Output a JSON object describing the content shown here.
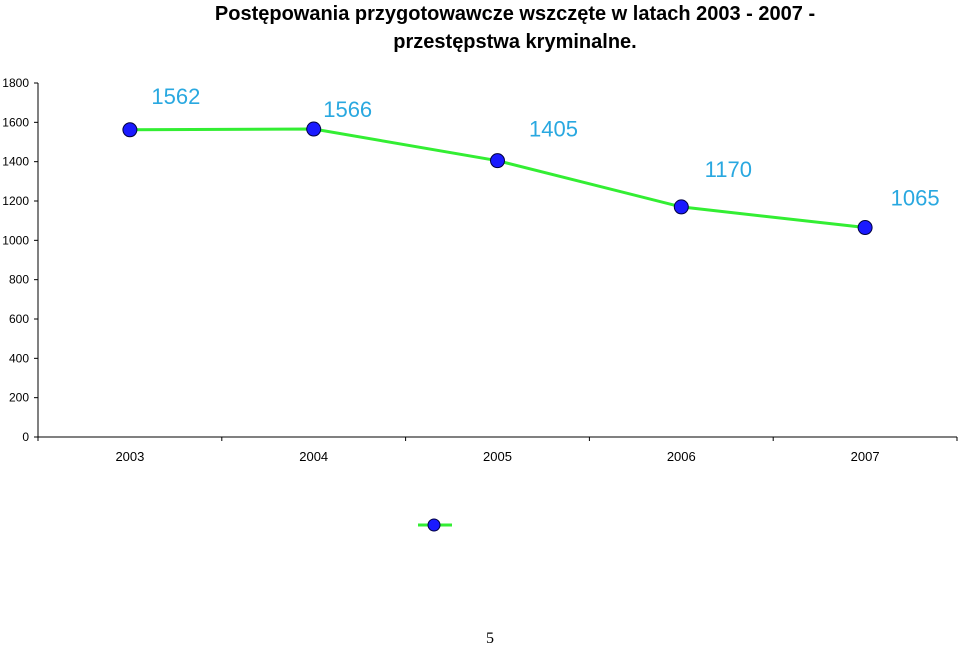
{
  "title_line1": "Postępowania przygotowawcze wszczęte w latach 2003 - 2007 -",
  "title_line2": "przestępstwa kryminalne.",
  "page_number": "5",
  "chart_data": {
    "type": "line",
    "categories": [
      "2003",
      "2004",
      "2005",
      "2006",
      "2007"
    ],
    "series": [
      {
        "values": [
          1562,
          1566,
          1405,
          1170,
          1065
        ]
      }
    ],
    "data_labels": [
      "1562",
      "1566",
      "1405",
      "1170",
      "1065"
    ],
    "ylim": [
      0,
      1800
    ],
    "yticks": [
      0,
      200,
      400,
      600,
      800,
      1000,
      1200,
      1400,
      1600,
      1800
    ],
    "line_color": "#33ee33",
    "marker_color": "#1a1aff",
    "label_color": "#29a8e0",
    "grid": false,
    "legend": "bottom-center"
  }
}
